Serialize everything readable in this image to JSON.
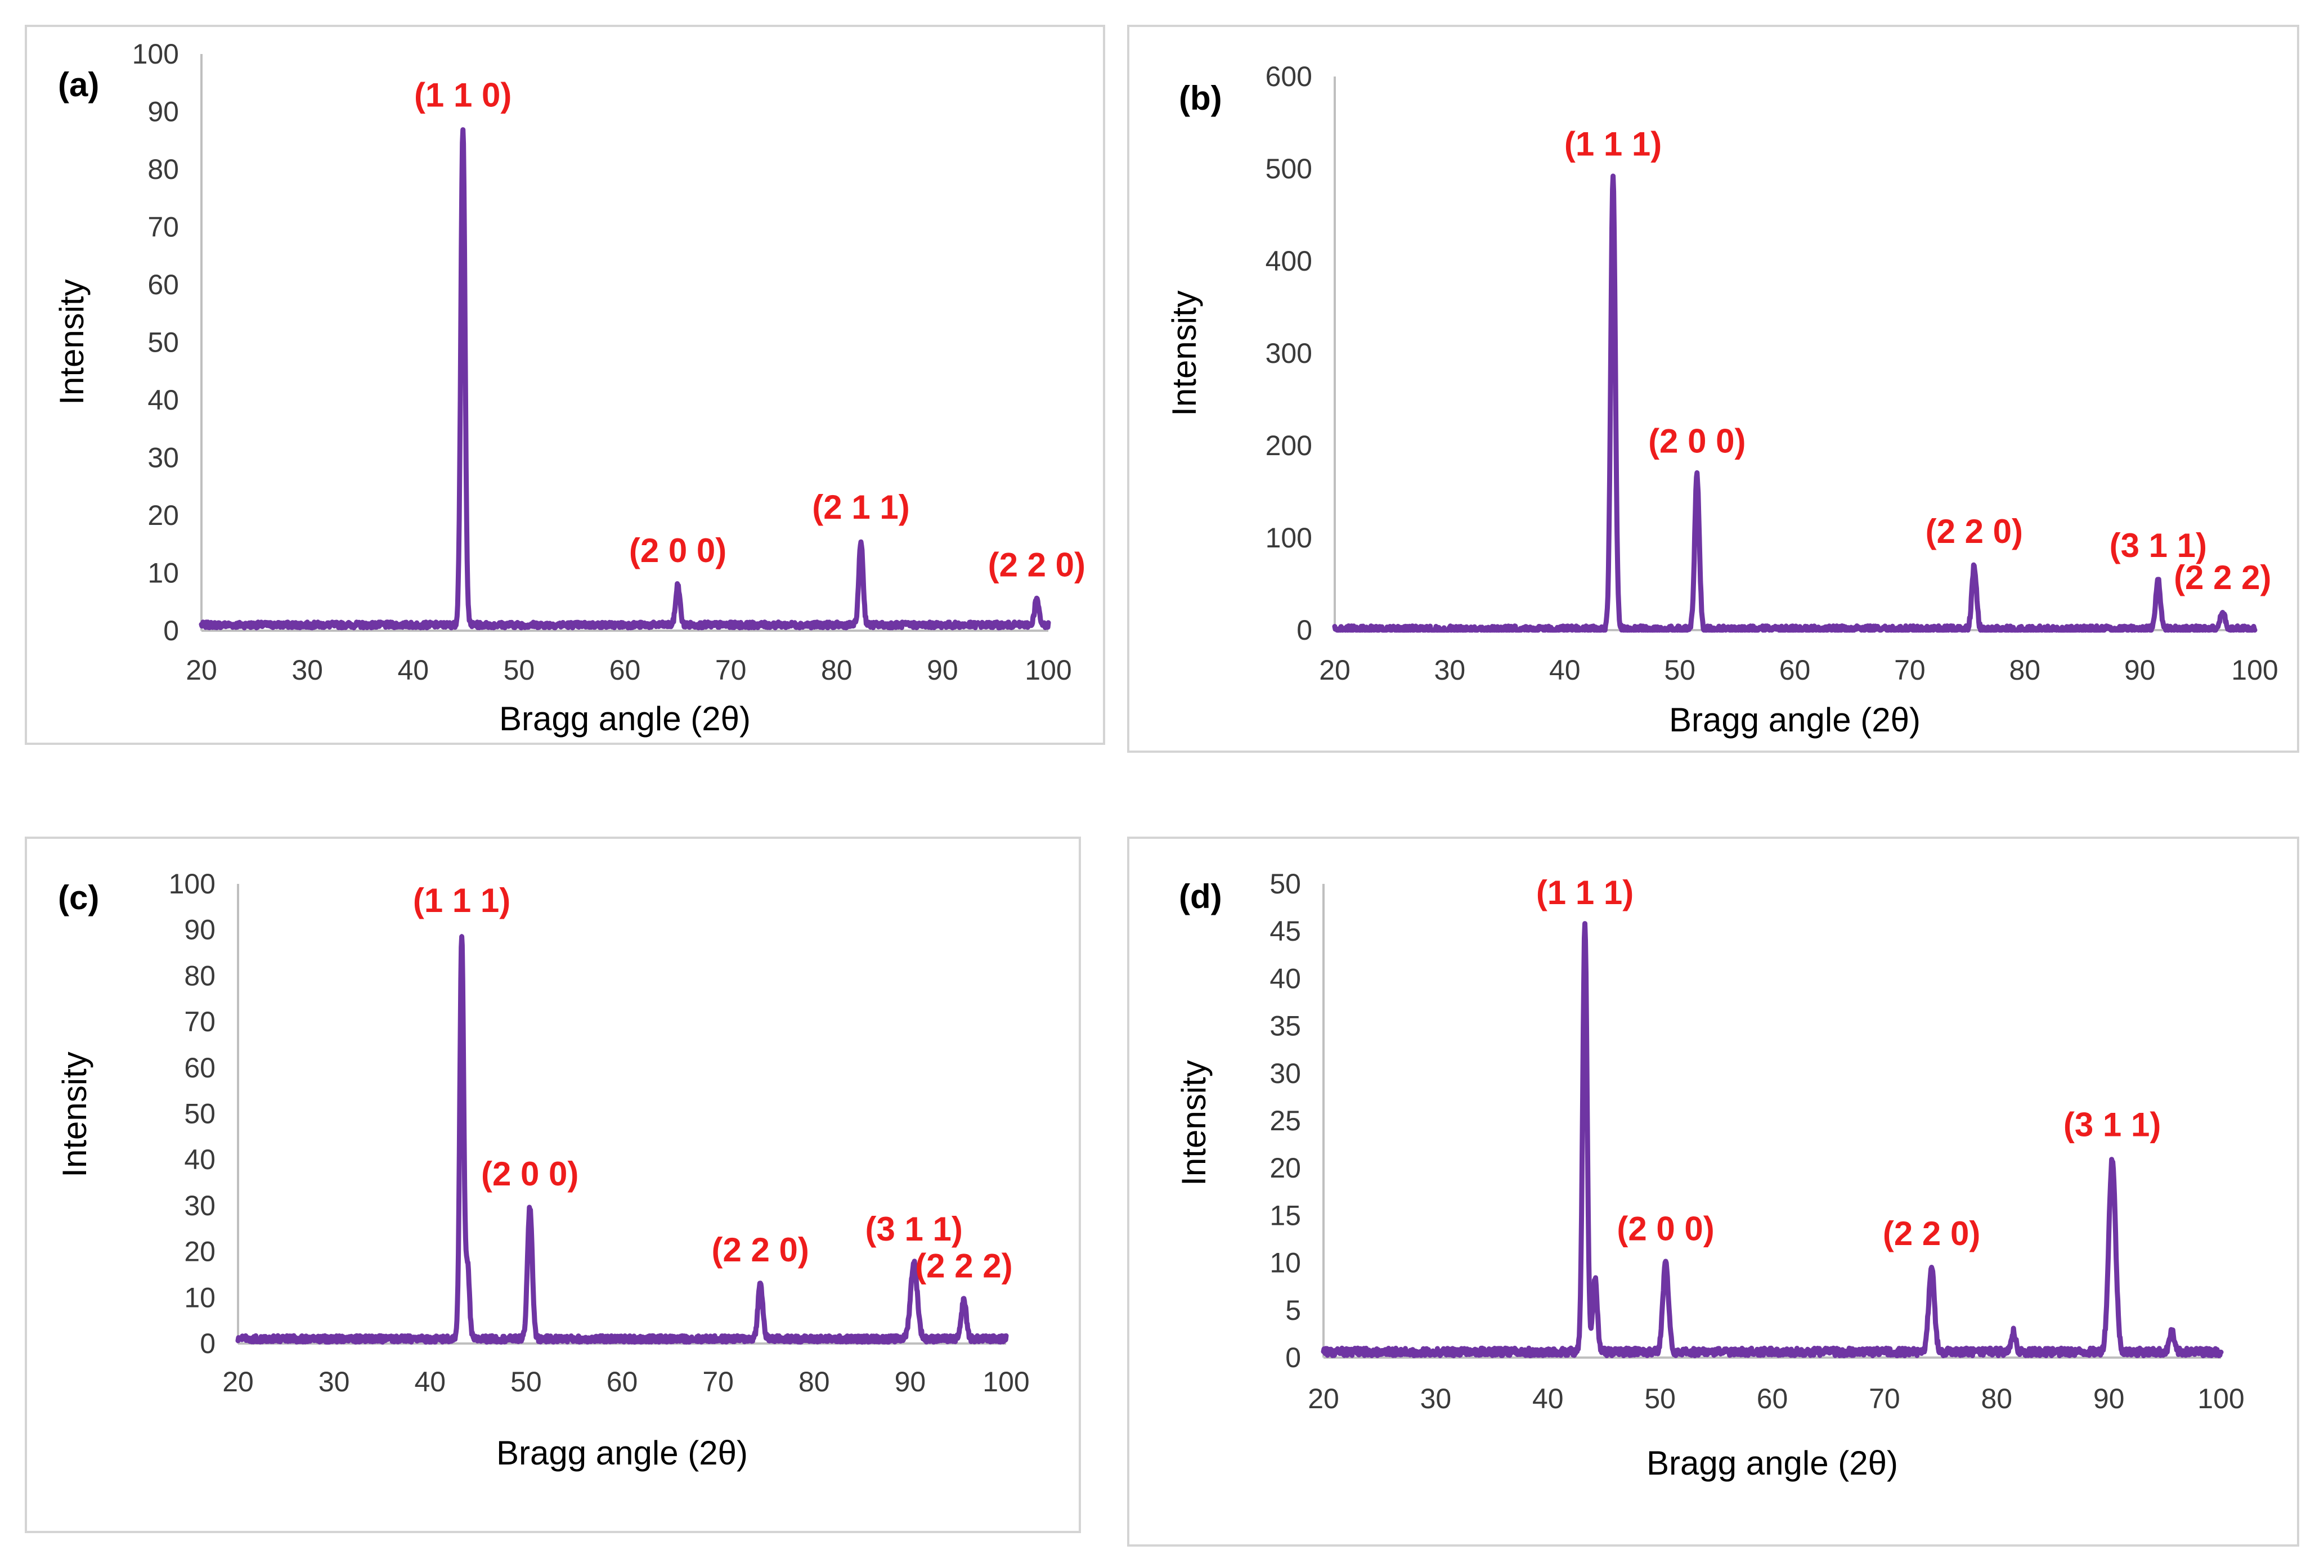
{
  "colors": {
    "series": "#6f35a3",
    "peak_label": "#ee1c1c",
    "axis": "#bfbfbf"
  },
  "chart_data": [
    {
      "type": "line",
      "panel_label": "(a)",
      "xlabel": "Bragg angle (2θ)",
      "ylabel": "Intensity",
      "xlim": [
        20,
        100
      ],
      "ylim": [
        0,
        100
      ],
      "xticks": [
        20,
        30,
        40,
        50,
        60,
        70,
        80,
        90,
        100
      ],
      "yticks": [
        0,
        10,
        20,
        30,
        40,
        50,
        60,
        70,
        80,
        90,
        100
      ],
      "baseline": 1,
      "noise": 0.5,
      "peaks": [
        {
          "x": 44.7,
          "y": 87,
          "width": 0.2,
          "label": "(1 1 0)"
        },
        {
          "x": 65.0,
          "y": 8,
          "width": 0.2,
          "label": "(2 0 0)"
        },
        {
          "x": 82.3,
          "y": 15.5,
          "width": 0.2,
          "label": "(2 1 1)"
        },
        {
          "x": 98.9,
          "y": 5.5,
          "width": 0.2,
          "label": "(2 2 0)"
        }
      ]
    },
    {
      "type": "line",
      "panel_label": "(b)",
      "xlabel": "Bragg angle (2θ)",
      "ylabel": "Intensity",
      "xlim": [
        20,
        100
      ],
      "ylim": [
        0,
        600
      ],
      "xticks": [
        20,
        30,
        40,
        50,
        60,
        70,
        80,
        90,
        100
      ],
      "yticks": [
        0,
        100,
        200,
        300,
        400,
        500,
        600
      ],
      "baseline": 1,
      "noise": 0.6,
      "peaks": [
        {
          "x": 44.2,
          "y": 490,
          "width": 0.2,
          "label": "(1 1 1)"
        },
        {
          "x": 51.5,
          "y": 168,
          "width": 0.2,
          "label": "(2 0 0)"
        },
        {
          "x": 75.6,
          "y": 70,
          "width": 0.2,
          "label": "(2 2 0)"
        },
        {
          "x": 91.6,
          "y": 55,
          "width": 0.2,
          "label": "(3 1 1)"
        },
        {
          "x": 97.2,
          "y": 20,
          "width": 0.2,
          "label": "(2 2 2)"
        }
      ]
    },
    {
      "type": "line",
      "panel_label": "(c)",
      "xlabel": "Bragg angle (2θ)",
      "ylabel": "Intensity",
      "xlim": [
        20,
        100
      ],
      "ylim": [
        0,
        100
      ],
      "xticks": [
        20,
        30,
        40,
        50,
        60,
        70,
        80,
        90,
        100
      ],
      "yticks": [
        0,
        10,
        20,
        30,
        40,
        50,
        60,
        70,
        80,
        90,
        100
      ],
      "baseline": 1,
      "noise": 0.7,
      "peaks": [
        {
          "x": 43.3,
          "y": 89,
          "width": 0.2,
          "label": "(1 1 1)"
        },
        {
          "x": 43.9,
          "y": 17,
          "width": 0.2,
          "label": ""
        },
        {
          "x": 50.4,
          "y": 29.5,
          "width": 0.25,
          "label": "(2 0 0)"
        },
        {
          "x": 74.4,
          "y": 13,
          "width": 0.25,
          "label": "(2 2 0)"
        },
        {
          "x": 90.4,
          "y": 17.5,
          "width": 0.35,
          "label": "(3 1 1)"
        },
        {
          "x": 95.6,
          "y": 9.5,
          "width": 0.25,
          "label": "(2 2 2)"
        }
      ]
    },
    {
      "type": "line",
      "panel_label": "(d)",
      "xlabel": "Bragg angle (2θ)",
      "ylabel": "Intensity",
      "xlim": [
        20,
        100
      ],
      "ylim": [
        0,
        50
      ],
      "xticks": [
        20,
        30,
        40,
        50,
        60,
        70,
        80,
        90,
        100
      ],
      "yticks": [
        0,
        5,
        10,
        15,
        20,
        25,
        30,
        35,
        40,
        45,
        50
      ],
      "baseline": 0.6,
      "noise": 0.8,
      "peaks": [
        {
          "x": 43.3,
          "y": 45.5,
          "width": 0.2,
          "label": "(1 1 1)"
        },
        {
          "x": 44.2,
          "y": 8.5,
          "width": 0.2,
          "label": ""
        },
        {
          "x": 50.5,
          "y": 10,
          "width": 0.25,
          "label": "(2 0 0)"
        },
        {
          "x": 74.2,
          "y": 9.5,
          "width": 0.25,
          "label": "(2 2 0)"
        },
        {
          "x": 90.3,
          "y": 21,
          "width": 0.3,
          "label": "(3 1 1)"
        },
        {
          "x": 81.5,
          "y": 2.8,
          "width": 0.2,
          "label": ""
        },
        {
          "x": 95.6,
          "y": 2.8,
          "width": 0.2,
          "label": ""
        }
      ]
    }
  ]
}
